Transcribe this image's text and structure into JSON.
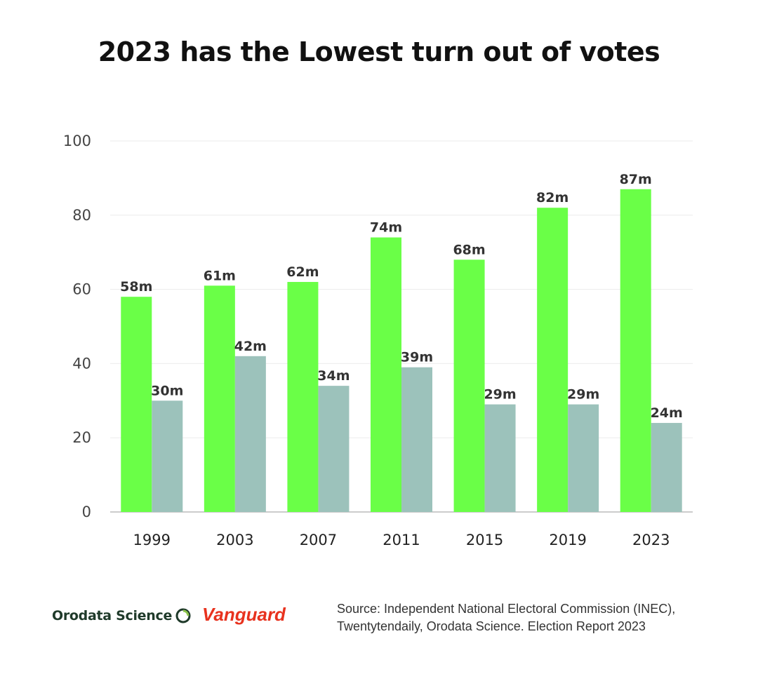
{
  "title": "2023 has the Lowest turn out of votes",
  "chart_data": {
    "type": "bar",
    "categories": [
      "1999",
      "2003",
      "2007",
      "2011",
      "2015",
      "2019",
      "2023"
    ],
    "series": [
      {
        "values": [
          58,
          61,
          62,
          74,
          68,
          82,
          87
        ],
        "labels": [
          "58m",
          "61m",
          "62m",
          "74m",
          "68m",
          "82m",
          "87m"
        ],
        "color": "#6aff47"
      },
      {
        "values": [
          30,
          42,
          34,
          39,
          29,
          29,
          24
        ],
        "labels": [
          "30m",
          "42m",
          "34m",
          "39m",
          "29m",
          "29m",
          "24m"
        ],
        "color": "#9cc2bb"
      }
    ],
    "yticks": [
      0,
      20,
      40,
      60,
      80,
      100
    ],
    "ylim": [
      0,
      100
    ],
    "grid": true,
    "legend": "none"
  },
  "footer": {
    "logo_orodata": "Orodata Science",
    "logo_vanguard": "Vanguard",
    "source_line1": "Source: Independent National Electoral Commission (INEC),",
    "source_line2": "Twentytendaily, Orodata Science. Election Report  2023",
    "orodata_color": "#1f3a2a",
    "orodata_accent": "#4caf50",
    "vanguard_color": "#e8321e"
  }
}
